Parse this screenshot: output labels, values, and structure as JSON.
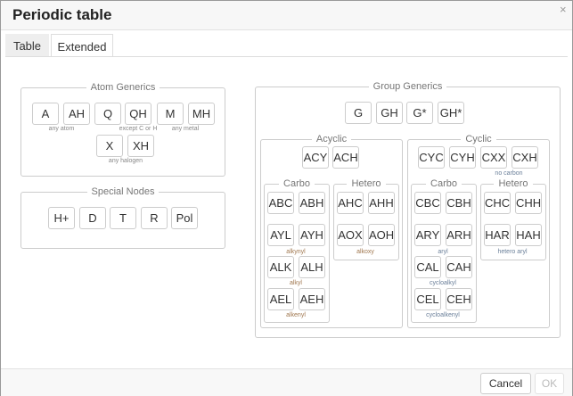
{
  "title": "Periodic table",
  "close_icon": "×",
  "tabs": [
    "Table",
    "Extended"
  ],
  "atom": {
    "legend": "Atom Generics",
    "buttons": [
      "A",
      "AH",
      "Q",
      "QH",
      "M",
      "MH",
      "X",
      "XH"
    ],
    "captions": [
      "any atom",
      "except C or H",
      "any metal",
      "any halogen"
    ]
  },
  "special": {
    "legend": "Special Nodes",
    "buttons": [
      "H+",
      "D",
      "T",
      "R",
      "Pol"
    ]
  },
  "group": {
    "legend": "Group Generics",
    "buttons": [
      "G",
      "GH",
      "G*",
      "GH*"
    ],
    "acyclic": {
      "legend": "Acyclic",
      "buttons": [
        "ACY",
        "ACH"
      ],
      "carbo": {
        "legend": "Carbo",
        "buttons": [
          "ABC",
          "ABH",
          "AYL",
          "AYH",
          "ALK",
          "ALH",
          "AEL",
          "AEH"
        ],
        "captions": [
          "alkynyl",
          "alkyl",
          "alkenyl"
        ]
      },
      "hetero": {
        "legend": "Hetero",
        "buttons": [
          "AHC",
          "AHH",
          "AOX",
          "AOH"
        ],
        "captions": [
          "alkoxy"
        ]
      }
    },
    "cyclic": {
      "legend": "Cyclic",
      "buttons": [
        "CYC",
        "CYH",
        "CXX",
        "CXH"
      ],
      "captions": [
        "no carbon"
      ],
      "carbo": {
        "legend": "Carbo",
        "buttons": [
          "CBC",
          "CBH",
          "ARY",
          "ARH",
          "CAL",
          "CAH",
          "CEL",
          "CEH"
        ],
        "captions": [
          "aryl",
          "cycloalkyl",
          "cycloalkenyl"
        ]
      },
      "hetero": {
        "legend": "Hetero",
        "buttons": [
          "CHC",
          "CHH",
          "HAR",
          "HAH"
        ],
        "captions": [
          "hetero aryl"
        ]
      }
    }
  },
  "footer": {
    "cancel": "Cancel",
    "ok": "OK"
  },
  "colors": {
    "acyclic_caption": "#a07850",
    "cyclic_caption": "#6a7f99"
  }
}
